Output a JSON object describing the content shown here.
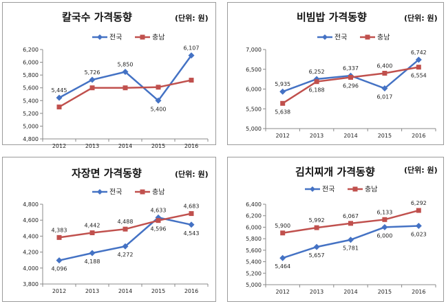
{
  "chart_data": [
    {
      "type": "line",
      "title": "칼국수 가격동향",
      "unit": "(단위: 원)",
      "categories": [
        "2012",
        "2013",
        "2014",
        "2015",
        "2016"
      ],
      "ylim": [
        4800,
        6200
      ],
      "yticks": [
        "4,800",
        "5,000",
        "5,200",
        "5,400",
        "5,600",
        "5,800",
        "6,000",
        "6,200"
      ],
      "series": [
        {
          "name": "전국",
          "color": "#4472c4",
          "values": [
            5445,
            5726,
            5850,
            5400,
            6107
          ],
          "labels": [
            "5,445",
            "5,726",
            "5,850",
            "5,400",
            "6,107"
          ],
          "label_pos": [
            "above",
            "above",
            "above",
            "below",
            "above"
          ]
        },
        {
          "name": "충남",
          "color": "#c0504d",
          "values": [
            5300,
            5600,
            5600,
            5610,
            5720
          ],
          "labels": [],
          "label_pos": []
        }
      ]
    },
    {
      "type": "line",
      "title": "비빔밥 가격동향",
      "unit": "(단위: 원)",
      "categories": [
        "2012",
        "2013",
        "2014",
        "2015",
        "2016"
      ],
      "ylim": [
        5000,
        7000
      ],
      "yticks": [
        "5,000",
        "5,500",
        "6,000",
        "6,500",
        "7,000"
      ],
      "series": [
        {
          "name": "전국",
          "color": "#4472c4",
          "values": [
            5935,
            6252,
            6337,
            6017,
            6742
          ],
          "labels": [
            "5,935",
            "6,252",
            "6,337",
            "6,017",
            "6,742"
          ],
          "label_pos": [
            "above",
            "above",
            "above",
            "below",
            "above"
          ]
        },
        {
          "name": "충남",
          "color": "#c0504d",
          "values": [
            5638,
            6188,
            6296,
            6400,
            6554
          ],
          "labels": [
            "5,638",
            "6,188",
            "6,296",
            "6,400",
            "6,554"
          ],
          "label_pos": [
            "below",
            "below",
            "below",
            "above",
            "below"
          ]
        }
      ]
    },
    {
      "type": "line",
      "title": "자장면 가격동향",
      "unit": "(단위: 원)",
      "categories": [
        "2012",
        "2013",
        "2014",
        "2015",
        "2016"
      ],
      "ylim": [
        3800,
        4800
      ],
      "yticks": [
        "3,800",
        "4,000",
        "4,200",
        "4,400",
        "4,600",
        "4,800"
      ],
      "series": [
        {
          "name": "전국",
          "color": "#4472c4",
          "values": [
            4096,
            4188,
            4272,
            4633,
            4543
          ],
          "labels": [
            "4,096",
            "4,188",
            "4,272",
            "4,633",
            "4,543"
          ],
          "label_pos": [
            "below",
            "below",
            "below",
            "above",
            "below"
          ]
        },
        {
          "name": "충남",
          "color": "#c0504d",
          "values": [
            4383,
            4442,
            4488,
            4596,
            4683
          ],
          "labels": [
            "4,383",
            "4,442",
            "4,488",
            "4,596",
            "4,683"
          ],
          "label_pos": [
            "above",
            "above",
            "above",
            "below",
            "above"
          ]
        }
      ]
    },
    {
      "type": "line",
      "title": "김치찌개 가격동향",
      "unit": "(단위: 원)",
      "categories": [
        "2012",
        "2013",
        "2014",
        "2015",
        "2016"
      ],
      "ylim": [
        5000,
        6400
      ],
      "yticks": [
        "5,000",
        "5,200",
        "5,400",
        "5,600",
        "5,800",
        "6,000",
        "6,200",
        "6,400"
      ],
      "series": [
        {
          "name": "전국",
          "color": "#4472c4",
          "values": [
            5464,
            5657,
            5781,
            6000,
            6023
          ],
          "labels": [
            "5,464",
            "5,657",
            "5,781",
            "6,000",
            "6,023"
          ],
          "label_pos": [
            "below",
            "below",
            "below",
            "below",
            "below"
          ]
        },
        {
          "name": "충남",
          "color": "#c0504d",
          "values": [
            5900,
            5992,
            6067,
            6133,
            6292
          ],
          "labels": [
            "5,900",
            "5,992",
            "6,067",
            "6,133",
            "6,292"
          ],
          "label_pos": [
            "above",
            "above",
            "above",
            "above",
            "above"
          ]
        }
      ]
    }
  ]
}
